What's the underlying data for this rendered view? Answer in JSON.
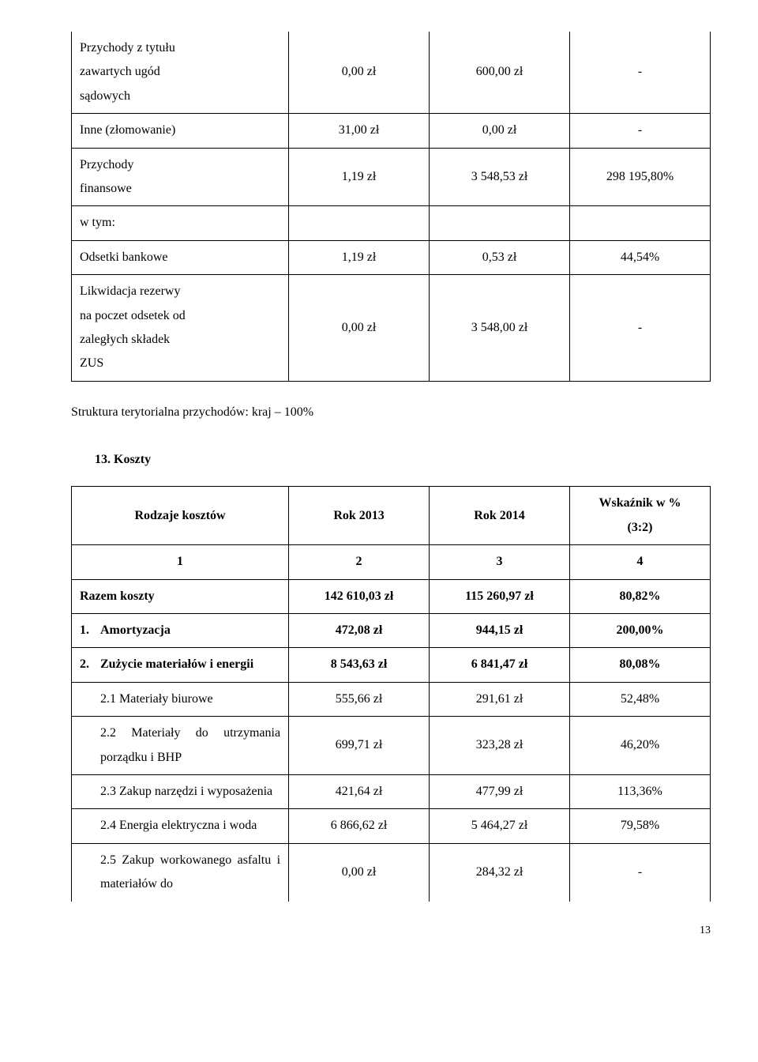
{
  "table1": {
    "rows": [
      {
        "label": "Przychody z tytułu zawartych ugód sądowych",
        "c2": "0,00 zł",
        "c3": "600,00 zł",
        "c4": "-"
      },
      {
        "label": "Inne (złomowanie)",
        "c2": "31,00 zł",
        "c3": "0,00 zł",
        "c4": "-"
      },
      {
        "label": "Przychody finansowe",
        "c2": "1,19 zł",
        "c3": "3 548,53 zł",
        "c4": "298 195,80%"
      },
      {
        "label": "w tym:",
        "c2": "",
        "c3": "",
        "c4": ""
      },
      {
        "label": "Odsetki bankowe",
        "c2": "1,19 zł",
        "c3": "0,53 zł",
        "c4": "44,54%"
      },
      {
        "label": "Likwidacja rezerwy na poczet odsetek od zaległych składek ZUS",
        "c2": "0,00 zł",
        "c3": "3 548,00 zł",
        "c4": "-"
      }
    ]
  },
  "struktura": "Struktura terytorialna przychodów: kraj – 100%",
  "section13": "13. Koszty",
  "table2": {
    "header": {
      "c1": "Rodzaje kosztów",
      "c2": "Rok 2013",
      "c3": "Rok 2014",
      "c4a": "Wskaźnik w %",
      "c4b": "(3:2)"
    },
    "numbers": {
      "c1": "1",
      "c2": "2",
      "c3": "3",
      "c4": "4"
    },
    "rows": [
      {
        "label": "Razem koszty",
        "c2": "142 610,03 zł",
        "c3": "115 260,97 zł",
        "c4": "80,82%",
        "bold": true
      },
      {
        "label_num": "1.",
        "label": "Amortyzacja",
        "c2": "472,08 zł",
        "c3": "944,15 zł",
        "c4": "200,00%",
        "bold": true
      },
      {
        "label_num": "2.",
        "label": "Zużycie materiałów i energii",
        "c2": "8 543,63 zł",
        "c3": "6 841,47 zł",
        "c4": "80,08%",
        "bold": true
      },
      {
        "label": "2.1 Materiały biurowe",
        "c2": "555,66 zł",
        "c3": "291,61 zł",
        "c4": "52,48%",
        "sub": true
      },
      {
        "label": "2.2 Materiały do utrzymania porządku i BHP",
        "c2": "699,71 zł",
        "c3": "323,28 zł",
        "c4": "46,20%",
        "sub": true
      },
      {
        "label": "2.3 Zakup narzędzi i wyposażenia",
        "c2": "421,64 zł",
        "c3": "477,99 zł",
        "c4": "113,36%",
        "sub": true
      },
      {
        "label": "2.4 Energia elektryczna i woda",
        "c2": "6 866,62 zł",
        "c3": "5 464,27 zł",
        "c4": "79,58%",
        "sub": true
      },
      {
        "label": "2.5 Zakup workowanego asfaltu i materiałów do",
        "c2": "0,00 zł",
        "c3": "284,32 zł",
        "c4": "-",
        "sub": true,
        "cut": true
      }
    ]
  },
  "page_num": "13"
}
